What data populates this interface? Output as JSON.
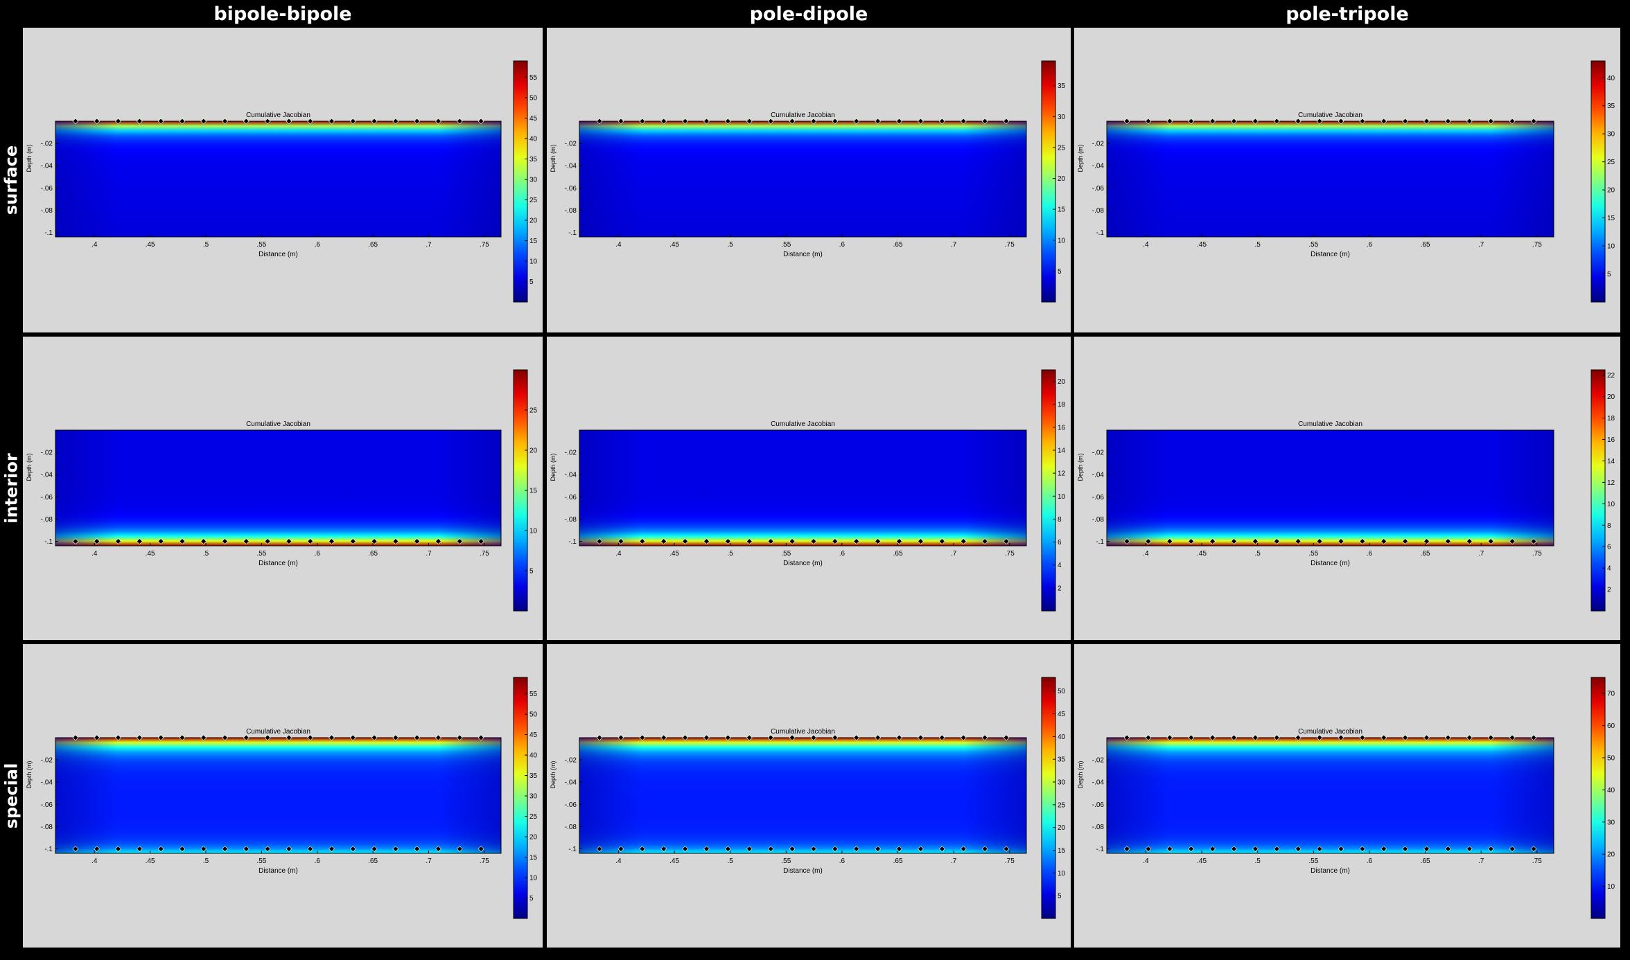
{
  "columns": [
    "bipole-bipole",
    "pole-dipole",
    "pole-tripole"
  ],
  "rows": [
    "surface",
    "interior",
    "special"
  ],
  "chart_data": [
    {
      "id": "surface-bipole-bipole",
      "row": "surface",
      "column": "bipole-bipole",
      "type": "heatmap",
      "title": "Cumulative Jacobian",
      "xlabel": "Distance (m)",
      "ylabel": "Depth (m)",
      "x_ticks": [
        0.4,
        0.45,
        0.5,
        0.55,
        0.6,
        0.65,
        0.7,
        0.75
      ],
      "y_ticks": [
        -0.02,
        -0.04,
        -0.06,
        -0.08,
        -0.1
      ],
      "xlim": [
        0.365,
        0.765
      ],
      "ylim": [
        -0.104,
        0
      ],
      "color_scale": "jet",
      "colorbar_ticks": [
        5,
        10,
        15,
        20,
        25,
        30,
        35,
        40,
        45,
        50,
        55
      ],
      "colorbar_range": [
        0,
        59
      ],
      "electrodes": {
        "depths": [
          0
        ],
        "x_start": 0.383,
        "x_end": 0.747,
        "count": 20
      },
      "hotspot": "shallow"
    },
    {
      "id": "surface-pole-dipole",
      "row": "surface",
      "column": "pole-dipole",
      "type": "heatmap",
      "title": "Cumulative Jacobian",
      "xlabel": "Distance (m)",
      "ylabel": "Depth (m)",
      "x_ticks": [
        0.4,
        0.45,
        0.5,
        0.55,
        0.6,
        0.65,
        0.7,
        0.75
      ],
      "y_ticks": [
        -0.02,
        -0.04,
        -0.06,
        -0.08,
        -0.1
      ],
      "xlim": [
        0.365,
        0.765
      ],
      "ylim": [
        -0.104,
        0
      ],
      "color_scale": "jet",
      "colorbar_ticks": [
        5,
        10,
        15,
        20,
        25,
        30,
        35
      ],
      "colorbar_range": [
        0,
        39
      ],
      "electrodes": {
        "depths": [
          0
        ],
        "x_start": 0.383,
        "x_end": 0.747,
        "count": 20
      },
      "hotspot": "shallow"
    },
    {
      "id": "surface-pole-tripole",
      "row": "surface",
      "column": "pole-tripole",
      "type": "heatmap",
      "title": "Cumulative Jacobian",
      "xlabel": "Distance (m)",
      "ylabel": "Depth (m)",
      "x_ticks": [
        0.4,
        0.45,
        0.5,
        0.55,
        0.6,
        0.65,
        0.7,
        0.75
      ],
      "y_ticks": [
        -0.02,
        -0.04,
        -0.06,
        -0.08,
        -0.1
      ],
      "xlim": [
        0.365,
        0.765
      ],
      "ylim": [
        -0.104,
        0
      ],
      "color_scale": "jet",
      "colorbar_ticks": [
        5,
        10,
        15,
        20,
        25,
        30,
        35,
        40
      ],
      "colorbar_range": [
        0,
        43
      ],
      "electrodes": {
        "depths": [
          0
        ],
        "x_start": 0.383,
        "x_end": 0.747,
        "count": 20
      },
      "hotspot": "shallow"
    },
    {
      "id": "interior-bipole-bipole",
      "row": "interior",
      "column": "bipole-bipole",
      "type": "heatmap",
      "title": "Cumulative Jacobian",
      "xlabel": "Distance (m)",
      "ylabel": "Depth (m)",
      "x_ticks": [
        0.4,
        0.45,
        0.5,
        0.55,
        0.6,
        0.65,
        0.7,
        0.75
      ],
      "y_ticks": [
        -0.02,
        -0.04,
        -0.06,
        -0.08,
        -0.1
      ],
      "xlim": [
        0.365,
        0.765
      ],
      "ylim": [
        -0.104,
        0
      ],
      "color_scale": "jet",
      "colorbar_ticks": [
        5,
        10,
        15,
        20,
        25
      ],
      "colorbar_range": [
        0,
        30
      ],
      "electrodes": {
        "depths": [
          -0.1
        ],
        "x_start": 0.383,
        "x_end": 0.747,
        "count": 20
      },
      "hotspot": "deep"
    },
    {
      "id": "interior-pole-dipole",
      "row": "interior",
      "column": "pole-dipole",
      "type": "heatmap",
      "title": "Cumulative Jacobian",
      "xlabel": "Distance (m)",
      "ylabel": "Depth (m)",
      "x_ticks": [
        0.4,
        0.45,
        0.5,
        0.55,
        0.6,
        0.65,
        0.7,
        0.75
      ],
      "y_ticks": [
        -0.02,
        -0.04,
        -0.06,
        -0.08,
        -0.1
      ],
      "xlim": [
        0.365,
        0.765
      ],
      "ylim": [
        -0.104,
        0
      ],
      "color_scale": "jet",
      "colorbar_ticks": [
        2,
        4,
        6,
        8,
        10,
        12,
        14,
        16,
        18,
        20
      ],
      "colorbar_range": [
        0,
        21
      ],
      "electrodes": {
        "depths": [
          -0.1
        ],
        "x_start": 0.383,
        "x_end": 0.747,
        "count": 20
      },
      "hotspot": "deep"
    },
    {
      "id": "interior-pole-tripole",
      "row": "interior",
      "column": "pole-tripole",
      "type": "heatmap",
      "title": "Cumulative Jacobian",
      "xlabel": "Distance (m)",
      "ylabel": "Depth (m)",
      "x_ticks": [
        0.4,
        0.45,
        0.5,
        0.55,
        0.6,
        0.65,
        0.7,
        0.75
      ],
      "y_ticks": [
        -0.02,
        -0.04,
        -0.06,
        -0.08,
        -0.1
      ],
      "xlim": [
        0.365,
        0.765
      ],
      "ylim": [
        -0.104,
        0
      ],
      "color_scale": "jet",
      "colorbar_ticks": [
        2,
        4,
        6,
        8,
        10,
        12,
        14,
        16,
        18,
        20,
        22
      ],
      "colorbar_range": [
        0,
        22.5
      ],
      "electrodes": {
        "depths": [
          -0.1
        ],
        "x_start": 0.383,
        "x_end": 0.747,
        "count": 20
      },
      "hotspot": "deep"
    },
    {
      "id": "special-bipole-bipole",
      "row": "special",
      "column": "bipole-bipole",
      "type": "heatmap",
      "title": "Cumulative Jacobian",
      "xlabel": "Distance (m)",
      "ylabel": "Depth (m)",
      "x_ticks": [
        0.4,
        0.45,
        0.5,
        0.55,
        0.6,
        0.65,
        0.7,
        0.75
      ],
      "y_ticks": [
        -0.02,
        -0.04,
        -0.06,
        -0.08,
        -0.1
      ],
      "xlim": [
        0.365,
        0.765
      ],
      "ylim": [
        -0.104,
        0
      ],
      "color_scale": "jet",
      "colorbar_ticks": [
        5,
        10,
        15,
        20,
        25,
        30,
        35,
        40,
        45,
        50,
        55
      ],
      "colorbar_range": [
        0,
        59
      ],
      "electrodes": {
        "depths": [
          0,
          -0.1
        ],
        "x_start": 0.383,
        "x_end": 0.747,
        "count": 20
      },
      "hotspot": "shallow-and-deep"
    },
    {
      "id": "special-pole-dipole",
      "row": "special",
      "column": "pole-dipole",
      "type": "heatmap",
      "title": "Cumulative Jacobian",
      "xlabel": "Distance (m)",
      "ylabel": "Depth (m)",
      "x_ticks": [
        0.4,
        0.45,
        0.5,
        0.55,
        0.6,
        0.65,
        0.7,
        0.75
      ],
      "y_ticks": [
        -0.02,
        -0.04,
        -0.06,
        -0.08,
        -0.1
      ],
      "xlim": [
        0.365,
        0.765
      ],
      "ylim": [
        -0.104,
        0
      ],
      "color_scale": "jet",
      "colorbar_ticks": [
        5,
        10,
        15,
        20,
        25,
        30,
        35,
        40,
        45,
        50
      ],
      "colorbar_range": [
        0,
        53
      ],
      "electrodes": {
        "depths": [
          0,
          -0.1
        ],
        "x_start": 0.383,
        "x_end": 0.747,
        "count": 20
      },
      "hotspot": "shallow-and-deep"
    },
    {
      "id": "special-pole-tripole",
      "row": "special",
      "column": "pole-tripole",
      "type": "heatmap",
      "title": "Cumulative Jacobian",
      "xlabel": "Distance (m)",
      "ylabel": "Depth (m)",
      "x_ticks": [
        0.4,
        0.45,
        0.5,
        0.55,
        0.6,
        0.65,
        0.7,
        0.75
      ],
      "y_ticks": [
        -0.02,
        -0.04,
        -0.06,
        -0.08,
        -0.1
      ],
      "xlim": [
        0.365,
        0.765
      ],
      "ylim": [
        -0.104,
        0
      ],
      "color_scale": "jet",
      "colorbar_ticks": [
        10,
        20,
        30,
        40,
        50,
        60,
        70
      ],
      "colorbar_range": [
        0,
        75
      ],
      "electrodes": {
        "depths": [
          0,
          -0.1
        ],
        "x_start": 0.383,
        "x_end": 0.747,
        "count": 20
      },
      "hotspot": "shallow-and-deep"
    }
  ]
}
